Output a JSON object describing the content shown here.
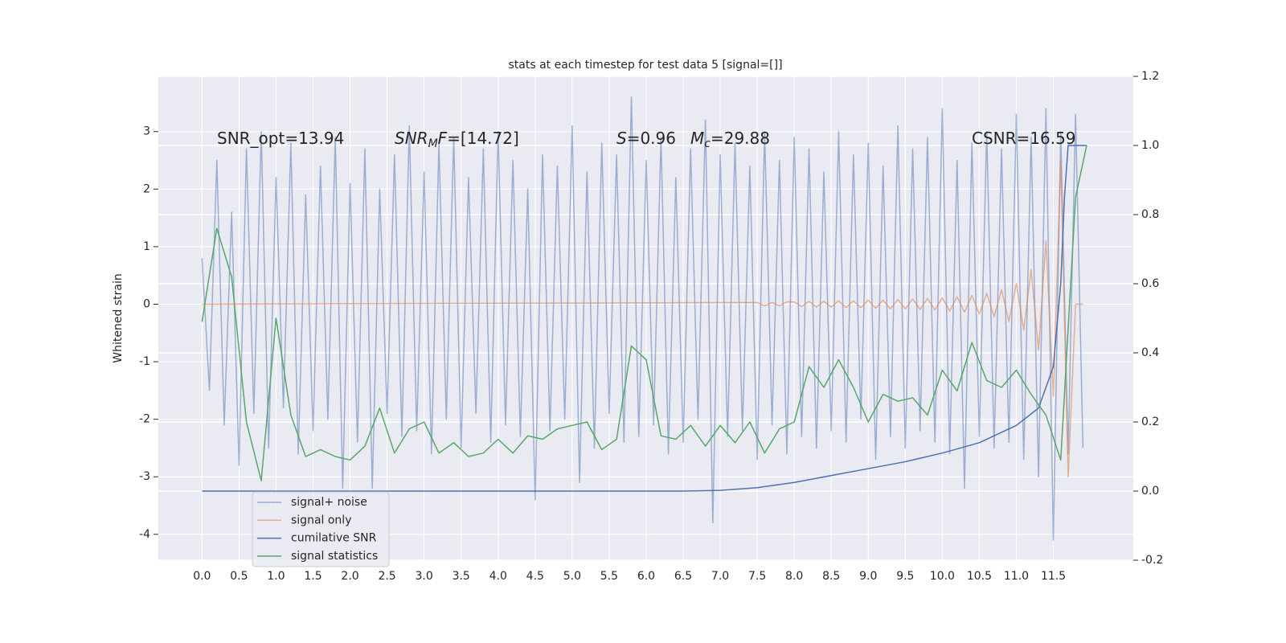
{
  "chart_data": {
    "type": "line",
    "title": "stats at each timestep for test data 5 [signal=[]]",
    "y_label": "Whitened strain",
    "xlim": [
      -0.59,
      12.58
    ],
    "ylim": [
      -4.45,
      3.96
    ],
    "y2lim": [
      -0.2,
      1.2
    ],
    "xticks": [
      {
        "value": 0,
        "label": "0.0"
      },
      0.5,
      {
        "value": 1,
        "label": "1.0"
      },
      1.5,
      {
        "value": 2,
        "label": "2.0"
      },
      2.5,
      {
        "value": 3,
        "label": "3.0"
      },
      3.5,
      {
        "value": 4,
        "label": "4.0"
      },
      4.5,
      {
        "value": 5,
        "label": "5.0"
      },
      5.5,
      {
        "value": 6,
        "label": "6.0"
      },
      6.5,
      {
        "value": 7,
        "label": "7.0"
      },
      7.5,
      {
        "value": 8,
        "label": "8.0"
      },
      8.5,
      {
        "value": 9,
        "label": "9.0"
      },
      9.5,
      {
        "value": 10,
        "label": "10.0"
      },
      10.5,
      {
        "value": 11,
        "label": "11.0"
      },
      11.5
    ],
    "yticks": [
      -4,
      -3,
      -2,
      -1,
      0,
      1,
      2,
      3
    ],
    "y2ticks": [
      -0.2,
      {
        "value": 0,
        "label": "0.0"
      },
      0.2,
      0.4,
      0.6,
      0.8,
      {
        "value": 1,
        "label": "1.0"
      },
      1.2
    ],
    "grid": true,
    "annotations": [
      [
        "SNR_opt=13.94"
      ],
      [
        "SNR",
        "M",
        "F",
        "=[14.72]"
      ],
      [
        "S",
        "=0.96"
      ],
      [
        "M",
        "c",
        "=29.88"
      ],
      [
        "CSNR=16.59"
      ]
    ],
    "series": [
      {
        "name": "signal+ noise",
        "color": "#4c72b0",
        "axis": "y",
        "x": [
          0,
          0.1,
          0.2,
          0.3,
          0.4,
          0.5,
          0.6,
          0.7,
          0.8,
          0.9,
          1,
          1.1,
          1.2,
          1.3,
          1.4,
          1.5,
          1.6,
          1.7,
          1.8,
          1.9,
          2,
          2.1,
          2.2,
          2.3,
          2.4,
          2.5,
          2.6,
          2.7,
          2.8,
          2.9,
          3,
          3.1,
          3.2,
          3.3,
          3.4,
          3.5,
          3.6,
          3.7,
          3.8,
          3.9,
          4,
          4.1,
          4.2,
          4.3,
          4.4,
          4.5,
          4.6,
          4.7,
          4.8,
          4.9,
          5,
          5.1,
          5.2,
          5.3,
          5.4,
          5.5,
          5.6,
          5.7,
          5.8,
          5.9,
          6,
          6.1,
          6.2,
          6.3,
          6.4,
          6.5,
          6.6,
          6.7,
          6.8,
          6.9,
          7,
          7.1,
          7.2,
          7.3,
          7.4,
          7.5,
          7.6,
          7.7,
          7.8,
          7.9,
          8,
          8.1,
          8.2,
          8.3,
          8.4,
          8.5,
          8.6,
          8.7,
          8.8,
          8.9,
          9,
          9.1,
          9.2,
          9.3,
          9.4,
          9.5,
          9.6,
          9.7,
          9.8,
          9.9,
          10,
          10.1,
          10.2,
          10.3,
          10.4,
          10.5,
          10.6,
          10.7,
          10.8,
          10.9,
          11,
          11.1,
          11.2,
          11.3,
          11.4,
          11.5,
          11.6,
          11.7,
          11.8,
          11.9
        ],
        "values": [
          0.8,
          -1.5,
          2.5,
          -2.1,
          1.6,
          -2.8,
          2.7,
          -1.9,
          3.0,
          -2.5,
          2.2,
          -1.8,
          2.8,
          -2.6,
          1.9,
          -2.2,
          2.4,
          -2.0,
          2.9,
          -3.2,
          2.1,
          -2.4,
          2.7,
          -3.2,
          2.0,
          -1.9,
          2.6,
          -2.3,
          3.1,
          -2.2,
          2.3,
          -2.6,
          2.8,
          -2.0,
          2.9,
          -2.5,
          2.2,
          -1.9,
          2.7,
          -2.4,
          3.0,
          -2.1,
          2.5,
          -2.3,
          2.0,
          -3.4,
          2.6,
          -2.2,
          2.4,
          -2.0,
          3.1,
          -3.1,
          2.3,
          -2.5,
          2.8,
          -1.9,
          2.6,
          -2.4,
          3.6,
          -2.3,
          2.5,
          -2.1,
          2.9,
          -2.6,
          2.2,
          -2.4,
          2.7,
          -2.0,
          3.2,
          -3.8,
          2.6,
          -2.3,
          2.8,
          -2.2,
          2.4,
          -2.7,
          3.0,
          -2.1,
          2.5,
          -2.6,
          2.9,
          -2.3,
          2.7,
          -2.5,
          2.3,
          -2.2,
          3.0,
          -2.4,
          2.6,
          -2.0,
          2.8,
          -2.7,
          2.4,
          -2.3,
          3.1,
          -2.5,
          2.7,
          -2.2,
          2.9,
          -2.4,
          3.4,
          -2.6,
          2.5,
          -3.2,
          2.8,
          -2.3,
          3.0,
          -2.5,
          2.7,
          -2.4,
          3.3,
          -2.7,
          2.9,
          -3.0,
          3.4,
          -4.1,
          3.0,
          -2.6,
          3.3,
          -2.5
        ]
      },
      {
        "name": "signal only",
        "color": "#dd8452",
        "axis": "y",
        "x": [
          0,
          7.5,
          7.6,
          7.7,
          7.8,
          7.9,
          8,
          8.1,
          8.2,
          8.3,
          8.4,
          8.5,
          8.6,
          8.7,
          8.8,
          8.9,
          9,
          9.1,
          9.2,
          9.3,
          9.4,
          9.5,
          9.6,
          9.7,
          9.8,
          9.9,
          10,
          10.1,
          10.2,
          10.3,
          10.4,
          10.5,
          10.6,
          10.7,
          10.8,
          10.9,
          11,
          11.1,
          11.2,
          11.3,
          11.4,
          11.5,
          11.6,
          11.7,
          11.8,
          11.9
        ],
        "values": [
          0,
          0.03,
          -0.03,
          0.03,
          -0.03,
          0.04,
          0.04,
          -0.04,
          0.05,
          -0.05,
          0.05,
          -0.05,
          0.06,
          -0.06,
          0.06,
          -0.06,
          0.07,
          -0.07,
          0.07,
          -0.08,
          0.08,
          -0.08,
          0.09,
          -0.09,
          0.1,
          -0.1,
          0.11,
          -0.12,
          0.13,
          -0.14,
          0.15,
          -0.17,
          0.19,
          -0.22,
          0.25,
          -0.3,
          0.36,
          -0.45,
          0.6,
          -0.8,
          1.1,
          -1.6,
          2.5,
          -3.0,
          0,
          0
        ]
      },
      {
        "name": "cumilative SNR",
        "color": "#4c72b0",
        "axis": "y2",
        "x": [
          0,
          6.5,
          7.0,
          7.5,
          8.0,
          8.5,
          9.0,
          9.5,
          10.0,
          10.5,
          11.0,
          11.3,
          11.5,
          11.6,
          11.65,
          11.7,
          11.95
        ],
        "values": [
          0,
          0,
          0.002,
          0.01,
          0.025,
          0.045,
          0.065,
          0.085,
          0.11,
          0.14,
          0.19,
          0.24,
          0.36,
          0.6,
          0.85,
          1.0,
          1.0
        ]
      },
      {
        "name": "signal statistics",
        "color": "#55a868",
        "axis": "y2",
        "x": [
          0,
          0.2,
          0.4,
          0.6,
          0.8,
          1.0,
          1.2,
          1.4,
          1.6,
          1.8,
          2.0,
          2.2,
          2.4,
          2.6,
          2.8,
          3.0,
          3.2,
          3.4,
          3.6,
          3.8,
          4.0,
          4.2,
          4.4,
          4.6,
          4.8,
          5.0,
          5.2,
          5.4,
          5.6,
          5.8,
          6.0,
          6.2,
          6.4,
          6.6,
          6.8,
          7.0,
          7.2,
          7.4,
          7.6,
          7.8,
          8.0,
          8.2,
          8.4,
          8.6,
          8.8,
          9.0,
          9.2,
          9.4,
          9.6,
          9.8,
          10.0,
          10.2,
          10.4,
          10.6,
          10.8,
          11.0,
          11.2,
          11.4,
          11.6,
          11.8,
          11.95
        ],
        "values": [
          0.49,
          0.76,
          0.62,
          0.2,
          0.03,
          0.5,
          0.22,
          0.1,
          0.12,
          0.1,
          0.09,
          0.13,
          0.24,
          0.11,
          0.18,
          0.2,
          0.11,
          0.14,
          0.1,
          0.11,
          0.15,
          0.11,
          0.16,
          0.15,
          0.18,
          0.19,
          0.2,
          0.12,
          0.15,
          0.42,
          0.38,
          0.16,
          0.15,
          0.19,
          0.13,
          0.19,
          0.14,
          0.2,
          0.11,
          0.18,
          0.2,
          0.36,
          0.3,
          0.38,
          0.3,
          0.2,
          0.28,
          0.26,
          0.27,
          0.22,
          0.35,
          0.29,
          0.43,
          0.32,
          0.3,
          0.35,
          0.28,
          0.22,
          0.09,
          0.85,
          1.0
        ]
      }
    ]
  }
}
